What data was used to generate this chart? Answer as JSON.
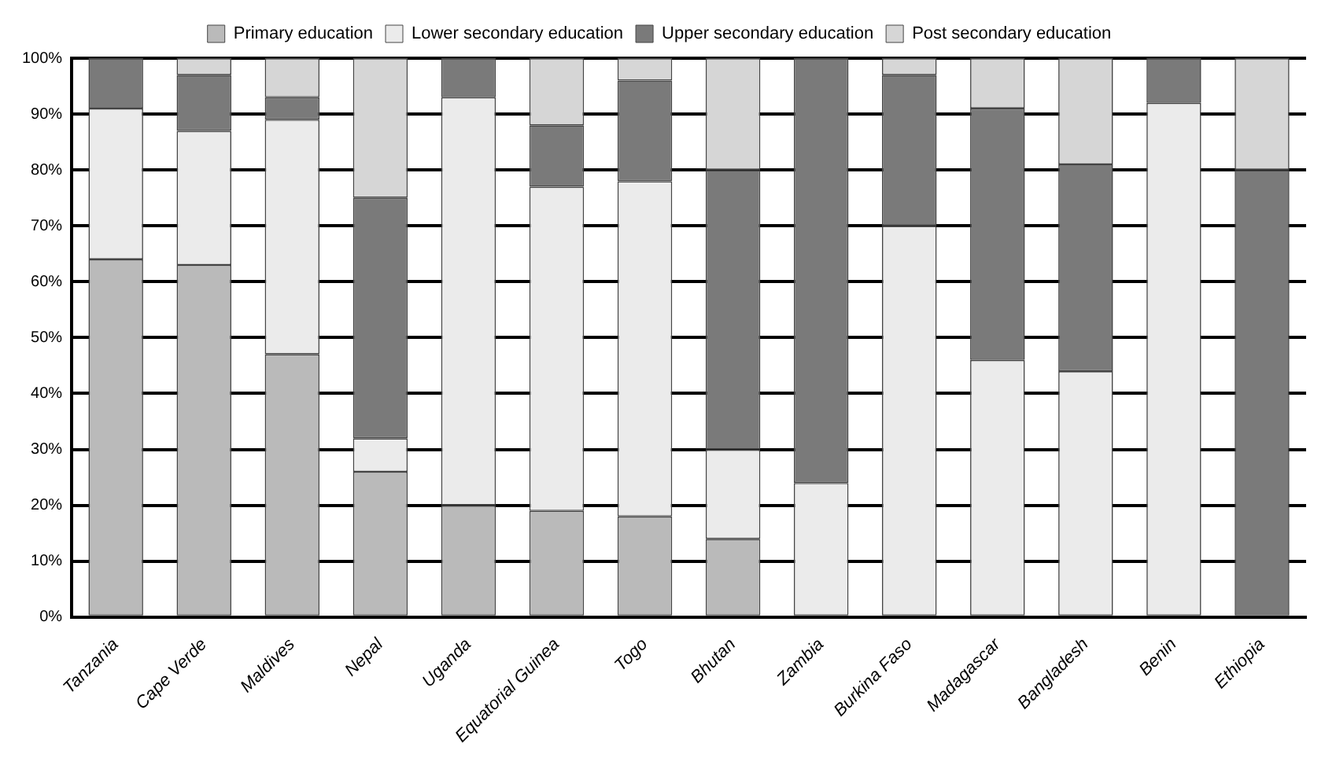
{
  "chart_data": {
    "type": "bar",
    "stacked": true,
    "categories": [
      "Tanzania",
      "Cape Verde",
      "Maldives",
      "Nepal",
      "Uganda",
      "Equatorial Guinea",
      "Togo",
      "Bhutan",
      "Zambia",
      "Burkina Faso",
      "Madagascar",
      "Bangladesh",
      "Benin",
      "Ethiopia"
    ],
    "series": [
      {
        "name": "Primary education",
        "color": "#bababa",
        "values": [
          64,
          63,
          47,
          26,
          20,
          19,
          18,
          14,
          0,
          0,
          0,
          0,
          0,
          0
        ]
      },
      {
        "name": "Lower secondary education",
        "color": "#ebebeb",
        "values": [
          27,
          24,
          42,
          6,
          73,
          58,
          60,
          16,
          24,
          70,
          46,
          44,
          92,
          0
        ]
      },
      {
        "name": "Upper secondary education",
        "color": "#7a7a7a",
        "values": [
          9,
          10,
          4,
          43,
          7,
          11,
          18,
          50,
          76,
          27,
          45,
          37,
          8,
          80
        ]
      },
      {
        "name": "Post secondary education",
        "color": "#d6d6d6",
        "values": [
          0,
          3,
          7,
          25,
          0,
          12,
          4,
          20,
          0,
          3,
          9,
          19,
          0,
          20
        ]
      }
    ],
    "ylim": [
      0,
      100
    ],
    "yticks": [
      {
        "value": 0,
        "label": "0%"
      },
      {
        "value": 10,
        "label": "10%"
      },
      {
        "value": 20,
        "label": "20%"
      },
      {
        "value": 30,
        "label": "30%"
      },
      {
        "value": 40,
        "label": "40%"
      },
      {
        "value": 50,
        "label": "50%"
      },
      {
        "value": 60,
        "label": "60%"
      },
      {
        "value": 70,
        "label": "70%"
      },
      {
        "value": 80,
        "label": "80%"
      },
      {
        "value": 90,
        "label": "90%"
      },
      {
        "value": 100,
        "label": "100%"
      }
    ],
    "grid": "y",
    "legend": "top"
  }
}
